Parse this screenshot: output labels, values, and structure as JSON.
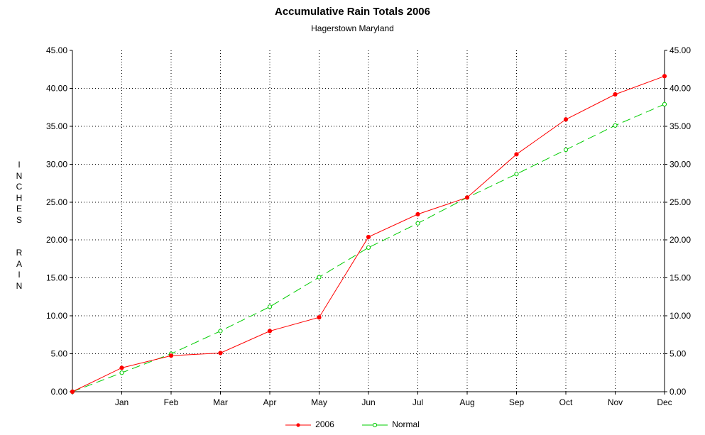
{
  "chart_data": {
    "type": "line",
    "title": "Accumulative Rain Totals 2006",
    "subtitle": "Hagerstown Maryland",
    "ylabel": "INCHES  RAIN",
    "xlabel": "",
    "categories": [
      "",
      "Jan",
      "Feb",
      "Mar",
      "Apr",
      "May",
      "Jun",
      "Jul",
      "Aug",
      "Sep",
      "Oct",
      "Nov",
      "Dec"
    ],
    "ylim": [
      0,
      45
    ],
    "yticks": [
      "0.00",
      "5.00",
      "10.00",
      "15.00",
      "20.00",
      "25.00",
      "30.00",
      "35.00",
      "40.00",
      "45.00"
    ],
    "grid": true,
    "legend_position": "bottom",
    "series": [
      {
        "name": "2006",
        "color": "#ff0000",
        "style": "solid",
        "values": [
          0,
          3.15,
          4.75,
          5.1,
          8.0,
          9.8,
          20.4,
          23.4,
          25.6,
          31.3,
          35.9,
          39.2,
          41.6
        ]
      },
      {
        "name": "Normal",
        "color": "#00cc00",
        "style": "dashed",
        "values": [
          0,
          2.5,
          5.0,
          8.0,
          11.2,
          15.1,
          19.0,
          22.2,
          25.6,
          28.7,
          31.9,
          35.1,
          37.9
        ]
      }
    ]
  }
}
